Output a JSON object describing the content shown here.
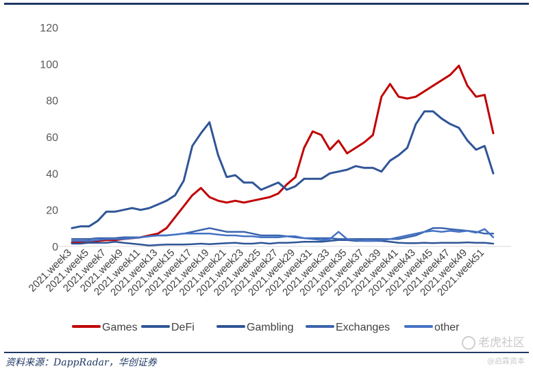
{
  "chart_data": {
    "type": "line",
    "title": "",
    "xlabel": "",
    "ylabel": "",
    "ylim": [
      0,
      120
    ],
    "yticks": [
      0,
      20,
      40,
      60,
      80,
      100,
      120
    ],
    "grid": false,
    "legend_position": "bottom",
    "x": [
      "2021.week3",
      "2021.week4",
      "2021.week5",
      "2021.week6",
      "2021.week7",
      "2021.week8",
      "2021.week9",
      "2021.week10",
      "2021.week11",
      "2021.week12",
      "2021.week13",
      "2021.week14",
      "2021.week15",
      "2021.week16",
      "2021.week17",
      "2021.week18",
      "2021.week19",
      "2021.week20",
      "2021.week21",
      "2021.week22",
      "2021.week23",
      "2021.week24",
      "2021.week25",
      "2021.week26",
      "2021.week27",
      "2021.week28",
      "2021.week29",
      "2021.week30",
      "2021.week31",
      "2021.week32",
      "2021.week33",
      "2021.week34",
      "2021.week35",
      "2021.week36",
      "2021.week37",
      "2021.week38",
      "2021.week39",
      "2021.week40",
      "2021.week41",
      "2021.week42",
      "2021.week43",
      "2021.week44",
      "2021.week45",
      "2021.week46",
      "2021.week47",
      "2021.week48",
      "2021.week49",
      "2021.week50",
      "2021.week51",
      "2021.week52"
    ],
    "x_tick_labels": [
      "2021.week3",
      "2021.week5",
      "2021.week7",
      "2021.week9",
      "2021.week11",
      "2021.week13",
      "2021.week15",
      "2021.week17",
      "2021.week19",
      "2021.week21",
      "2021.week23",
      "2021.week25",
      "2021.week27",
      "2021.week29",
      "2021.week31",
      "2021.week33",
      "2021.week35",
      "2021.week37",
      "2021.week39",
      "2021.week41",
      "2021.week43",
      "2021.week45",
      "2021.week47",
      "2021.week49",
      "2021.week51"
    ],
    "series": [
      {
        "name": "Games",
        "color": "#c00000",
        "width": 3,
        "values": [
          2,
          2.5,
          3,
          3,
          3.5,
          3.5,
          4,
          4.5,
          5,
          6,
          7,
          10,
          16,
          22,
          28,
          32,
          27,
          25,
          24,
          25,
          24,
          25,
          26,
          27,
          29,
          34,
          38,
          54,
          63,
          61,
          53,
          58,
          51,
          54,
          57,
          61,
          82,
          89,
          82,
          81,
          82,
          85,
          88,
          91,
          94,
          99,
          88,
          82,
          83,
          62
        ]
      },
      {
        "name": "DeFi",
        "color": "#2f5597",
        "width": 3,
        "values": [
          10,
          11,
          11,
          14,
          19,
          19,
          20,
          21,
          20,
          21,
          23,
          25,
          28,
          36,
          55,
          62,
          68,
          50,
          38,
          39,
          35,
          35,
          31,
          33,
          35,
          31,
          33,
          37,
          37,
          37,
          40,
          41,
          42,
          44,
          43,
          43,
          41,
          47,
          50,
          54,
          67,
          74,
          74,
          70,
          67,
          65,
          58,
          53,
          55,
          40
        ]
      },
      {
        "name": "Gambling",
        "color": "#2e5496",
        "width": 2.5,
        "values": [
          1.5,
          1.5,
          2,
          2,
          2,
          2.5,
          2,
          1.5,
          1,
          0.5,
          0.8,
          1,
          1,
          1,
          1.2,
          1.5,
          1.2,
          1.5,
          1.8,
          2,
          1.5,
          1.5,
          2,
          1.5,
          2,
          2,
          2.2,
          2.5,
          2.5,
          2.5,
          3,
          3.5,
          3.5,
          3,
          3,
          3,
          3,
          2.5,
          2,
          1.8,
          1.8,
          2,
          1.8,
          2,
          2,
          2,
          2.2,
          2,
          2,
          1.5
        ]
      },
      {
        "name": "Exchanges",
        "color": "#3a64ad",
        "width": 2.5,
        "values": [
          4,
          4,
          4,
          4.5,
          4.5,
          4.5,
          5,
          5,
          5,
          5.5,
          6,
          6,
          6.5,
          7,
          8,
          9,
          10,
          9,
          8,
          8,
          8,
          7,
          6,
          6,
          6,
          5.5,
          5,
          4.5,
          4.5,
          4.5,
          4.5,
          4,
          4,
          4,
          4,
          4,
          4,
          4,
          4,
          5,
          6,
          8,
          10,
          10,
          9.5,
          9,
          8.5,
          8,
          7,
          7
        ]
      },
      {
        "name": "other",
        "color": "#4472c4",
        "width": 2.5,
        "values": [
          3,
          3,
          3,
          3.5,
          4,
          4,
          4,
          4.5,
          5,
          5.5,
          6,
          6,
          6.5,
          7,
          7,
          7,
          7,
          6.5,
          6,
          6,
          5.5,
          5.5,
          5,
          5,
          5,
          5.5,
          5.5,
          4.5,
          4,
          3.5,
          4,
          8,
          4,
          3.5,
          3,
          3,
          3.5,
          4,
          5,
          6,
          7,
          8,
          8.5,
          8,
          8.5,
          8,
          8.5,
          7.5,
          9.5,
          5
        ]
      }
    ]
  },
  "source_text": "资料来源：DappRadar，华创证券",
  "watermark_main": "老虎社区",
  "watermark_sub": "@启霖资本"
}
